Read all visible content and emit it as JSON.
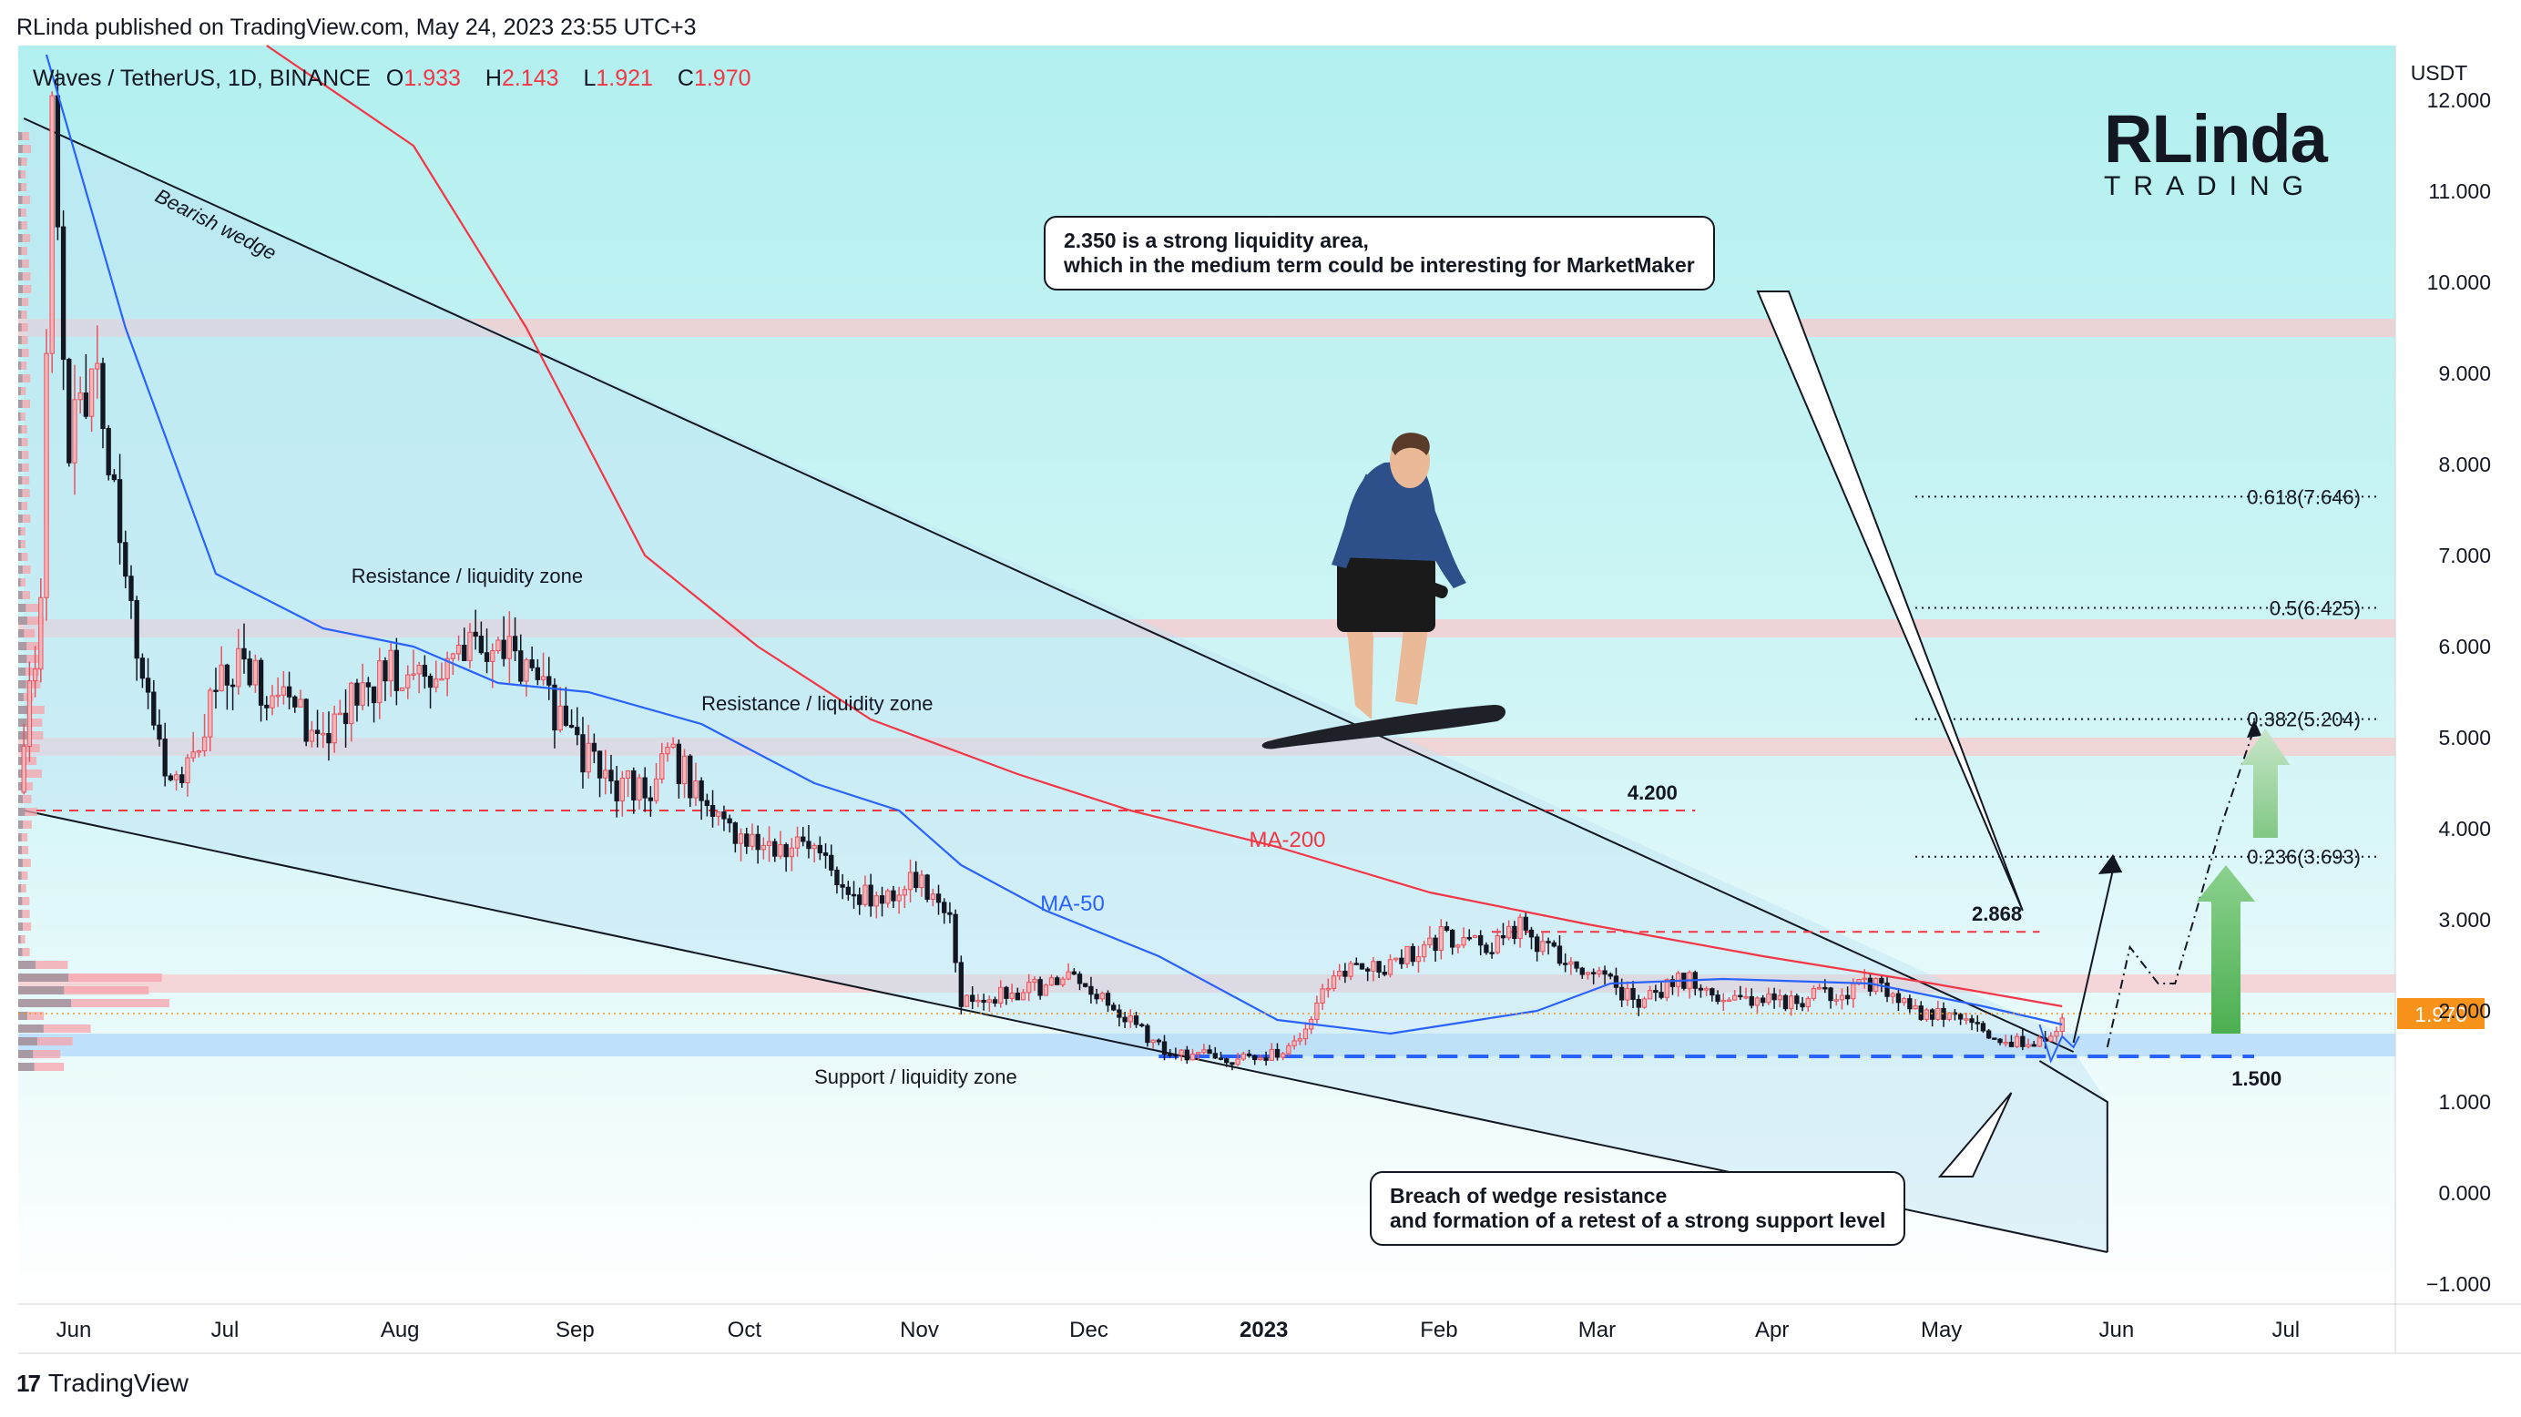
{
  "header": {
    "published": "RLinda published on TradingView.com, May 24, 2023 23:55 UTC+3"
  },
  "legend": {
    "symbol": "Waves / TetherUS, 1D, BINANCE",
    "o_label": "O",
    "o": "1.933",
    "h_label": "H",
    "h": "2.143",
    "l_label": "L",
    "l": "1.921",
    "c_label": "C",
    "c": "1.970"
  },
  "logo": {
    "big": "RLinda",
    "small": "TRADING"
  },
  "footer": {
    "brand": "TradingView",
    "mark": "17"
  },
  "colors": {
    "up": "#f5b5b9",
    "down": "#131722",
    "ma50": "#2962ff",
    "ma200": "#f23645",
    "price_badge": "#f7931a",
    "zone_red": "#f9c9cc",
    "zone_blue": "#bbdefb",
    "bg_top": "#b2f0ef",
    "bg_bottom": "#ffffff"
  },
  "callouts": {
    "top": [
      "2.350 is a strong liquidity area,",
      "which in the medium term could be interesting for MarketMaker"
    ],
    "bottom": [
      "Breach of wedge resistance",
      "and formation of a retest of a strong support level"
    ]
  },
  "chart_data": {
    "type": "candlestick",
    "title": "Waves / TetherUS, 1D, BINANCE",
    "y_unit": "USDT",
    "ylim": [
      -1.2,
      12.6
    ],
    "y_ticks": [
      "12.000",
      "11.000",
      "10.000",
      "9.000",
      "8.000",
      "7.000",
      "6.000",
      "5.000",
      "4.000",
      "3.000",
      "2.000",
      "1.000",
      "0.000",
      "−1.000"
    ],
    "y_tick_values": [
      12,
      11,
      10,
      9,
      8,
      7,
      6,
      5,
      4,
      3,
      2,
      1,
      0,
      -1
    ],
    "x_ticks": [
      "Jun",
      "Jul",
      "Aug",
      "Sep",
      "Oct",
      "Nov",
      "Dec",
      "2023",
      "Feb",
      "Mar",
      "Apr",
      "May",
      "Jun",
      "Jul"
    ],
    "x_tick_bold": [
      false,
      false,
      false,
      false,
      false,
      false,
      false,
      true,
      false,
      false,
      false,
      false,
      false,
      false
    ],
    "x_range": [
      "2022-05-27",
      "2023-07-22"
    ],
    "current_price": {
      "value": 1.97,
      "label": "1.970"
    },
    "price_keypoints": [
      [
        "2022-05-27",
        4.4
      ],
      [
        "2022-05-31",
        6.5
      ],
      [
        "2022-06-02",
        11.6
      ],
      [
        "2022-06-05",
        8.2
      ],
      [
        "2022-06-10",
        9.0
      ],
      [
        "2022-06-15",
        6.6
      ],
      [
        "2022-06-20",
        5.0
      ],
      [
        "2022-06-25",
        4.4
      ],
      [
        "2022-06-30",
        5.4
      ],
      [
        "2022-07-05",
        5.8
      ],
      [
        "2022-07-12",
        5.4
      ],
      [
        "2022-07-20",
        5.0
      ],
      [
        "2022-07-28",
        5.6
      ],
      [
        "2022-08-03",
        5.8
      ],
      [
        "2022-08-10",
        5.6
      ],
      [
        "2022-08-18",
        6.1
      ],
      [
        "2022-08-25",
        5.8
      ],
      [
        "2022-09-02",
        5.0
      ],
      [
        "2022-09-08",
        4.5
      ],
      [
        "2022-09-15",
        4.4
      ],
      [
        "2022-09-20",
        4.8
      ],
      [
        "2022-09-27",
        4.1
      ],
      [
        "2022-10-05",
        3.9
      ],
      [
        "2022-10-15",
        3.7
      ],
      [
        "2022-10-25",
        3.2
      ],
      [
        "2022-11-02",
        3.4
      ],
      [
        "2022-11-08",
        3.1
      ],
      [
        "2022-11-10",
        2.1
      ],
      [
        "2022-11-20",
        2.2
      ],
      [
        "2022-11-30",
        2.35
      ],
      [
        "2022-12-08",
        2.0
      ],
      [
        "2022-12-16",
        1.55
      ],
      [
        "2022-12-25",
        1.5
      ],
      [
        "2023-01-01",
        1.45
      ],
      [
        "2023-01-08",
        1.6
      ],
      [
        "2023-01-15",
        2.4
      ],
      [
        "2023-01-25",
        2.5
      ],
      [
        "2023-02-03",
        2.8
      ],
      [
        "2023-02-10",
        2.7
      ],
      [
        "2023-02-17",
        2.9
      ],
      [
        "2023-02-23",
        2.65
      ],
      [
        "2023-03-02",
        2.4
      ],
      [
        "2023-03-10",
        2.1
      ],
      [
        "2023-03-18",
        2.35
      ],
      [
        "2023-03-25",
        2.15
      ],
      [
        "2023-04-05",
        2.1
      ],
      [
        "2023-04-14",
        2.2
      ],
      [
        "2023-04-20",
        2.3
      ],
      [
        "2023-04-27",
        2.0
      ],
      [
        "2023-05-05",
        1.95
      ],
      [
        "2023-05-12",
        1.75
      ],
      [
        "2023-05-18",
        1.6
      ],
      [
        "2023-05-23",
        1.75
      ],
      [
        "2023-05-24",
        1.97
      ]
    ],
    "ma50_keypoints": [
      [
        "2022-06-01",
        12.5
      ],
      [
        "2022-06-15",
        9.5
      ],
      [
        "2022-07-01",
        6.8
      ],
      [
        "2022-07-20",
        6.2
      ],
      [
        "2022-08-05",
        6.0
      ],
      [
        "2022-08-20",
        5.6
      ],
      [
        "2022-09-05",
        5.5
      ],
      [
        "2022-09-25",
        5.15
      ],
      [
        "2022-10-15",
        4.5
      ],
      [
        "2022-10-30",
        4.2
      ],
      [
        "2022-11-10",
        3.6
      ],
      [
        "2022-11-25",
        3.1
      ],
      [
        "2022-12-15",
        2.6
      ],
      [
        "2023-01-05",
        1.9
      ],
      [
        "2023-01-25",
        1.75
      ],
      [
        "2023-02-20",
        2.0
      ],
      [
        "2023-03-05",
        2.3
      ],
      [
        "2023-03-25",
        2.35
      ],
      [
        "2023-04-20",
        2.3
      ],
      [
        "2023-05-10",
        2.05
      ],
      [
        "2023-05-24",
        1.85
      ]
    ],
    "ma200_keypoints": [
      [
        "2022-07-10",
        12.6
      ],
      [
        "2022-08-05",
        11.5
      ],
      [
        "2022-08-25",
        9.5
      ],
      [
        "2022-09-15",
        7.0
      ],
      [
        "2022-10-05",
        6.0
      ],
      [
        "2022-10-25",
        5.2
      ],
      [
        "2022-11-20",
        4.6
      ],
      [
        "2022-12-10",
        4.2
      ],
      [
        "2023-01-05",
        3.8
      ],
      [
        "2023-02-01",
        3.3
      ],
      [
        "2023-03-01",
        2.95
      ],
      [
        "2023-04-01",
        2.6
      ],
      [
        "2023-05-01",
        2.3
      ],
      [
        "2023-05-24",
        2.05
      ]
    ],
    "zones": [
      {
        "from": 9.4,
        "to": 9.6,
        "color": "red"
      },
      {
        "from": 6.1,
        "to": 6.3,
        "color": "red"
      },
      {
        "from": 4.8,
        "to": 5.0,
        "color": "red"
      },
      {
        "from": 2.2,
        "to": 2.4,
        "color": "red"
      },
      {
        "from": 1.5,
        "to": 1.75,
        "color": "blue"
      }
    ],
    "levels": [
      {
        "value": 4.2,
        "label": "4.200",
        "style": "dashed-red"
      },
      {
        "value": 2.868,
        "label": "2.868",
        "style": "dashed-red"
      },
      {
        "value": 1.5,
        "label": "1.500",
        "style": "dashed-blue"
      }
    ],
    "fibonacci": [
      {
        "value": 7.646,
        "label": "0.618(7.646)"
      },
      {
        "value": 6.425,
        "label": "0.5(6.425)"
      },
      {
        "value": 5.204,
        "label": "0.382(5.204)"
      },
      {
        "value": 3.693,
        "label": "0.236(3.693)"
      }
    ],
    "wedge": {
      "upper": [
        [
          "2022-05-28",
          11.8
        ],
        [
          "2023-05-24",
          1.75
        ]
      ],
      "lower": [
        [
          "2022-05-28",
          4.2
        ],
        [
          "2023-05-24",
          -0.65
        ]
      ],
      "label": "Bearish wedge"
    },
    "annotations": [
      {
        "text": "Resistance / liquidity zone",
        "date": "2022-07-25",
        "value": 6.7
      },
      {
        "text": "Resistance / liquidity zone",
        "date": "2022-09-25",
        "value": 5.3
      },
      {
        "text": "Support / liquidity zone",
        "date": "2022-10-15",
        "value": 1.2
      },
      {
        "text": "MA-50",
        "date": "2022-11-24",
        "value": 3.1
      },
      {
        "text": "MA-200",
        "date": "2022-12-31",
        "value": 3.8
      }
    ],
    "forecast_path": [
      [
        "2023-05-24",
        1.6
      ],
      [
        "2023-06-05",
        2.7
      ],
      [
        "2023-06-10",
        2.3
      ],
      [
        "2023-06-13",
        2.3
      ],
      [
        "2023-06-21",
        4.0
      ],
      [
        "2023-06-27",
        5.1
      ]
    ]
  }
}
